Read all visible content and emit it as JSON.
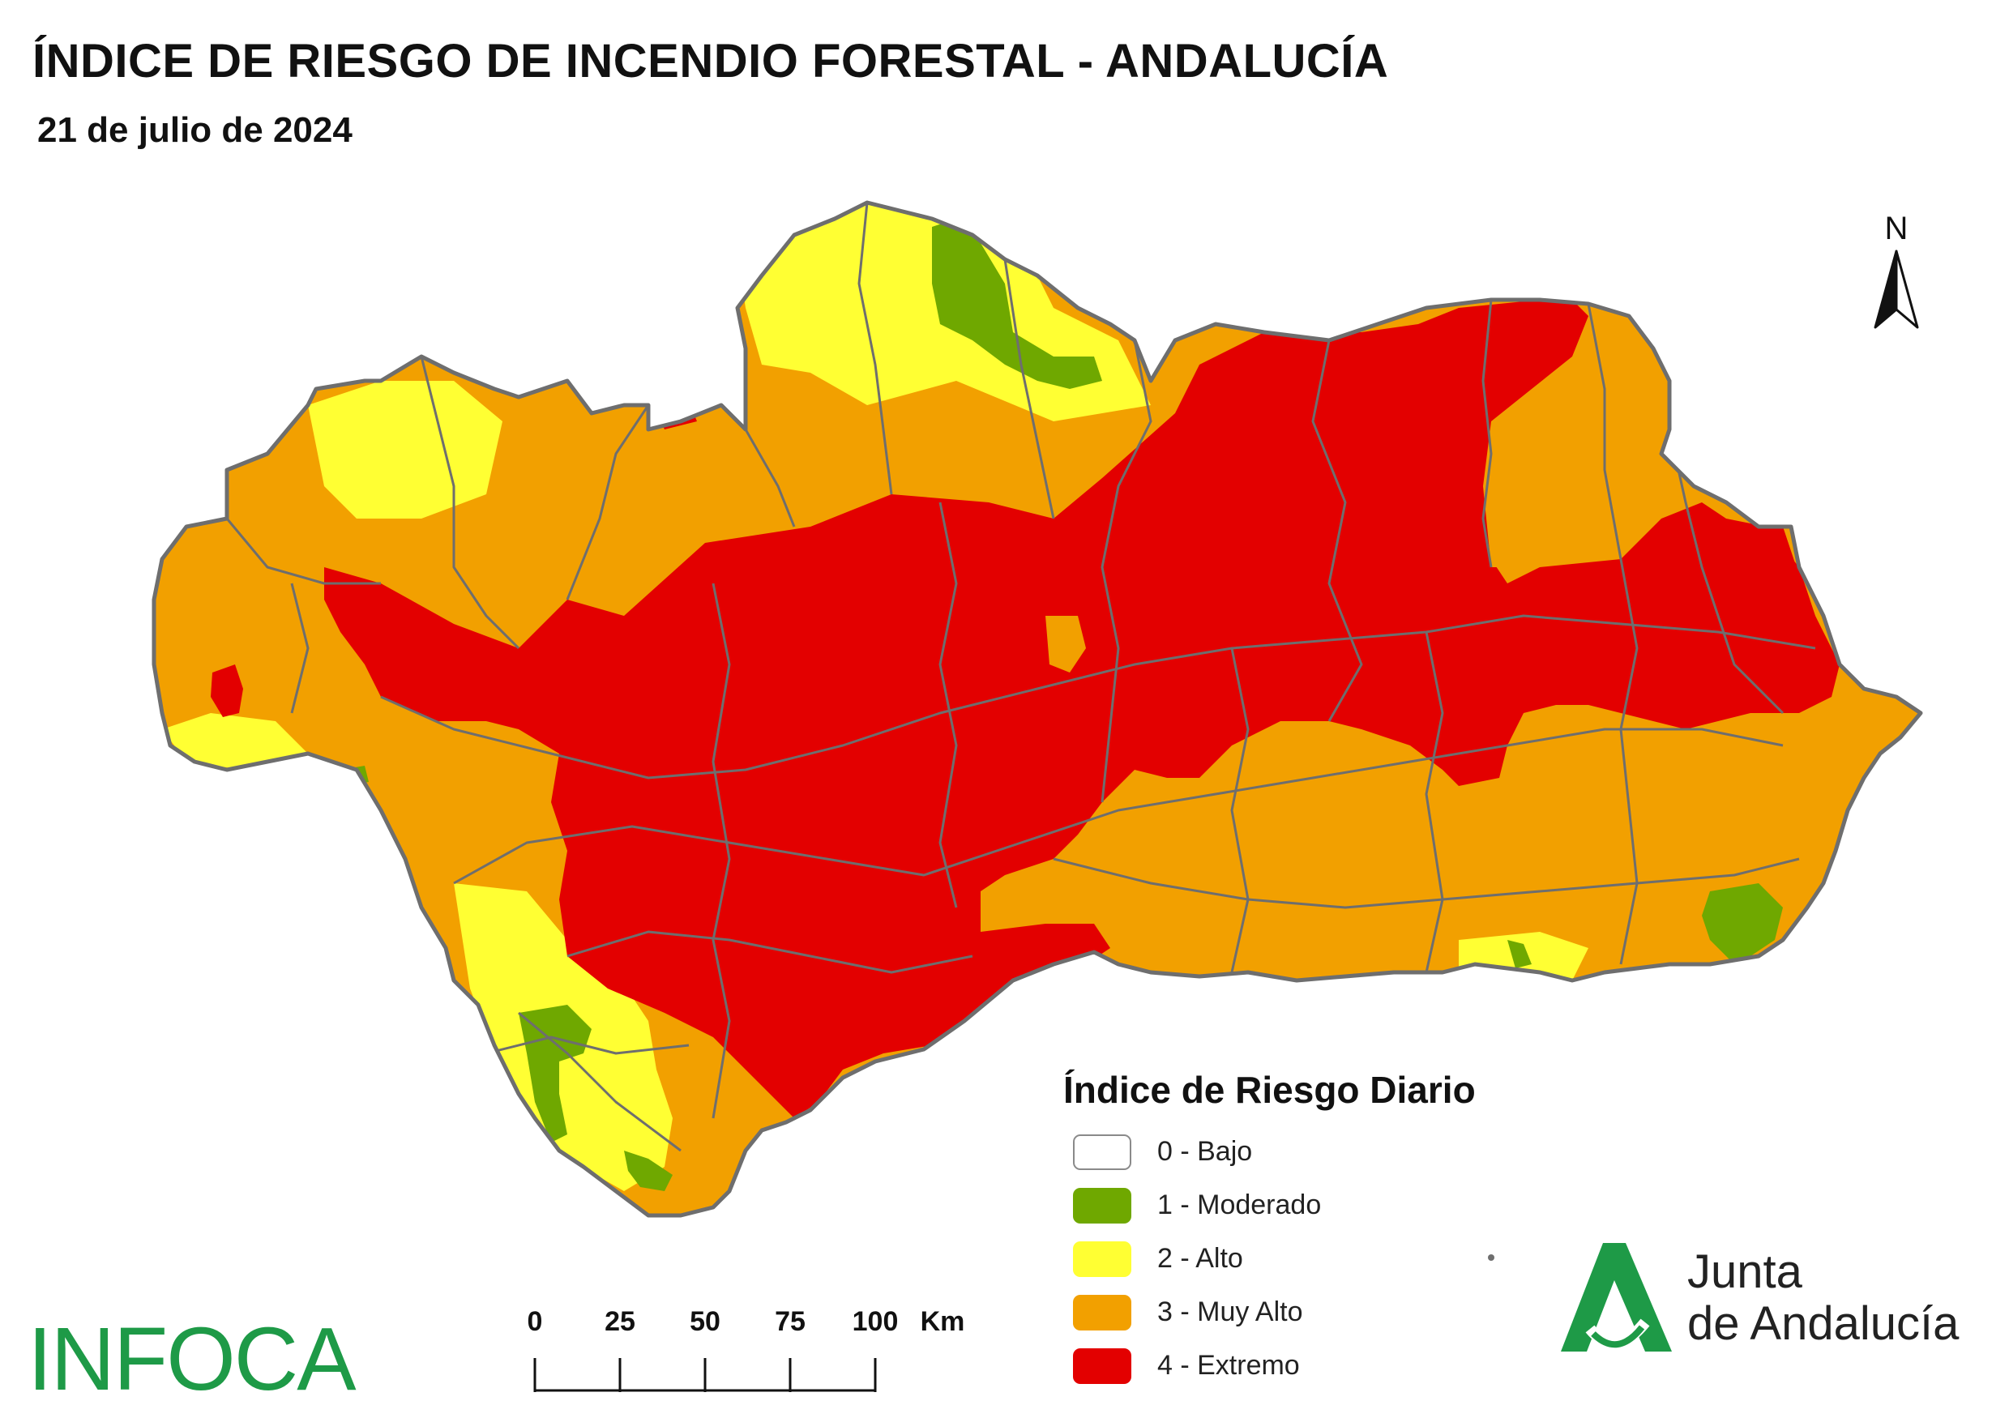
{
  "title": "ÍNDICE DE RIESGO DE INCENDIO FORESTAL - ANDALUCÍA",
  "subtitle": "21 de julio de 2024",
  "north_arrow": {
    "label": "N"
  },
  "legend": {
    "title": "Índice de Riesgo Diario",
    "items": [
      {
        "label": "0 - Bajo",
        "color": "#ffffff"
      },
      {
        "label": "1 - Moderado",
        "color": "#6fa800"
      },
      {
        "label": "2 - Alto",
        "color": "#ffff33"
      },
      {
        "label": "3 - Muy Alto",
        "color": "#f2a000"
      },
      {
        "label": "4 - Extremo",
        "color": "#e30000"
      }
    ]
  },
  "scale_bar": {
    "labels": [
      "0",
      "25",
      "50",
      "75",
      "100"
    ],
    "unit": "Km"
  },
  "logos": {
    "infoca": "INFOCA",
    "junta_line1": "Junta",
    "junta_line2": "de Andalucía"
  },
  "colors": {
    "border": "#6e6e6e",
    "moderado": "#6fa800",
    "alto": "#ffff33",
    "muy_alto": "#f2a000",
    "extremo": "#e30000",
    "infoca_green": "#1e9a47",
    "junta_green": "#1e9a47"
  }
}
